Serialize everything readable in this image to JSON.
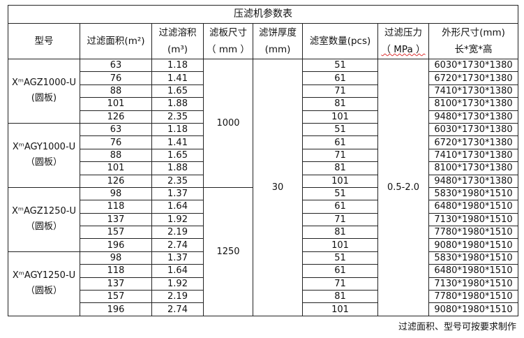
{
  "title": "压滤机参数表",
  "headers": {
    "model": "型号",
    "area": "过滤面积(m²)",
    "volume_1": "过滤溶积",
    "volume_2": "(m³)",
    "plate_1": "滤板尺寸",
    "plate_2": "（ mm ）",
    "cake_1": "滤饼厚度",
    "cake_2": "(mm)",
    "chambers": "滤室数量(pcs)",
    "pressure_1": "过滤压力",
    "pressure_2": "（ MPa ）",
    "dims_1": "外形尺寸(mm)",
    "dims_2": "长*宽*高"
  },
  "cake_thickness": "30",
  "pressure": "0.5-2.0",
  "groups": [
    {
      "model": "XᵐAGZ1000-U",
      "sub": "(圆板)",
      "plate": "1000",
      "rows": [
        [
          "63",
          "1.18",
          "51",
          "6030*1730*1380"
        ],
        [
          "76",
          "1.41",
          "61",
          "6720*1730*1380"
        ],
        [
          "88",
          "1.65",
          "71",
          "7410*1730*1380"
        ],
        [
          "101",
          "1.88",
          "81",
          "8100*1730*1380"
        ],
        [
          "126",
          "2.35",
          "101",
          "9480*1730*1380"
        ]
      ]
    },
    {
      "model": "XᵐAGY1000-U",
      "sub": "（圆板）",
      "plate": "1000",
      "rows": [
        [
          "63",
          "1.18",
          "51",
          "6030*1730*1380"
        ],
        [
          "76",
          "1.41",
          "61",
          "6720*1730*1380"
        ],
        [
          "88",
          "1.65",
          "71",
          "7410*1730*1380"
        ],
        [
          "101",
          "1.88",
          "81",
          "8100*1730*1380"
        ],
        [
          "126",
          "2.35",
          "101",
          "9480*1730*1380"
        ]
      ]
    },
    {
      "model": "XᵐAGZ1250-U",
      "sub": "（圆板）",
      "plate": "1250",
      "rows": [
        [
          "98",
          "1.37",
          "51",
          "5830*1980*1510"
        ],
        [
          "118",
          "1.64",
          "61",
          "6480*1980*1510"
        ],
        [
          "137",
          "1.92",
          "71",
          "7130*1980*1510"
        ],
        [
          "157",
          "2.19",
          "81",
          "7780*1980*1510"
        ],
        [
          "196",
          "2.74",
          "101",
          "9080*1980*1510"
        ]
      ]
    },
    {
      "model": "XᵐAGY1250-U",
      "sub": "（圆板）",
      "plate": "1250",
      "rows": [
        [
          "98",
          "1.37",
          "51",
          "5830*1980*1510"
        ],
        [
          "118",
          "1.64",
          "61",
          "6480*1980*1510"
        ],
        [
          "137",
          "1.92",
          "71",
          "7130*1980*1510"
        ],
        [
          "157",
          "2.19",
          "81",
          "7780*1980*1510"
        ],
        [
          "196",
          "2.74",
          "101",
          "9080*1980*1510"
        ]
      ]
    }
  ],
  "note": "过滤面积、型号可按要求制作"
}
